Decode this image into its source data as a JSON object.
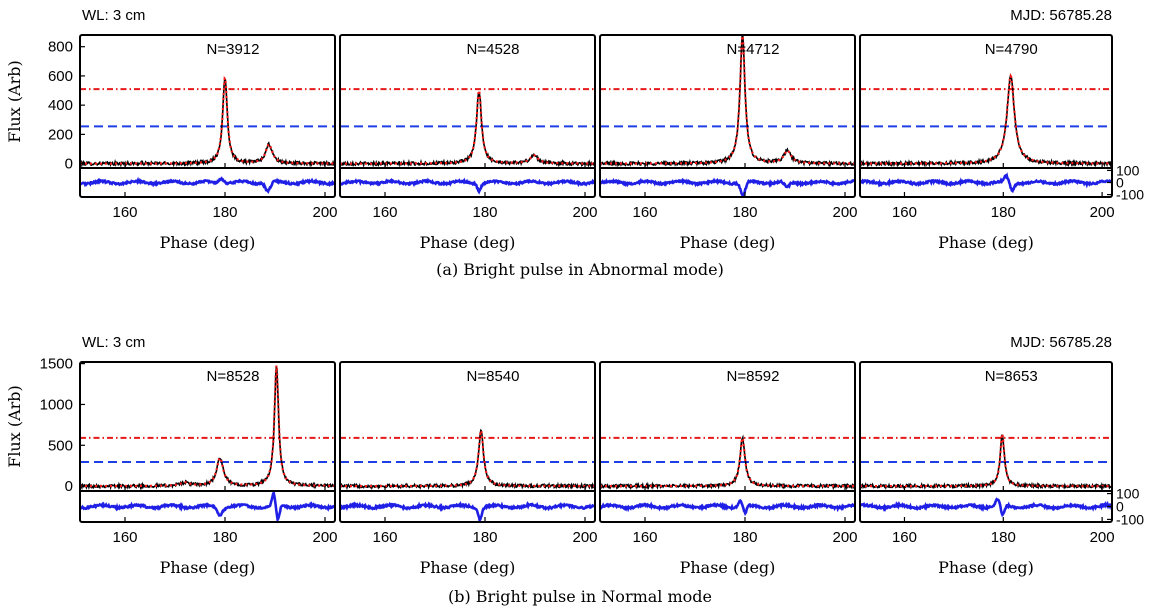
{
  "colors": {
    "profile": "#000000",
    "fit": "#ff1a1a",
    "residual": "#1f1fe6",
    "threshold_high": "#e61919",
    "threshold_low": "#1f3fe6"
  },
  "chart_data": [
    {
      "type": "line",
      "caption": "(a) Bright pulse in Abnormal mode)",
      "top_left_label": "WL: 3 cm",
      "top_right_label": "MJD: 56785.28",
      "ylabel": "Flux (Arb)",
      "xlabel": "Phase (deg)",
      "xlim": [
        151,
        202
      ],
      "xticks": [
        160,
        180,
        200
      ],
      "ylim": [
        -30,
        880
      ],
      "yticks": [
        0,
        200,
        400,
        600,
        800
      ],
      "residual_ylim": [
        -120,
        120
      ],
      "residual_ticks": [
        100,
        0,
        -100
      ],
      "threshold_high": 510,
      "threshold_low": 255,
      "panels": [
        {
          "label": "N=3912",
          "pulses": [
            {
              "center": 180.0,
              "amplitude": 590,
              "width": 0.55
            },
            {
              "center": 188.8,
              "amplitude": 130,
              "width": 0.8
            }
          ],
          "residual_features": [
            {
              "center": 179.3,
              "amplitude": 35,
              "width": 0.5
            },
            {
              "center": 188.6,
              "amplitude": -70,
              "width": 0.5
            }
          ]
        },
        {
          "label": "N=4528",
          "pulses": [
            {
              "center": 178.8,
              "amplitude": 500,
              "width": 0.6
            },
            {
              "center": 189.8,
              "amplitude": 55,
              "width": 1.0
            }
          ],
          "residual_features": [
            {
              "center": 178.8,
              "amplitude": -60,
              "width": 0.35
            }
          ]
        },
        {
          "label": "N=4712",
          "pulses": [
            {
              "center": 179.5,
              "amplitude": 880,
              "width": 0.6
            },
            {
              "center": 188.5,
              "amplitude": 85,
              "width": 0.9
            }
          ],
          "residual_features": [
            {
              "center": 179.6,
              "amplitude": -110,
              "width": 0.45
            },
            {
              "center": 188.4,
              "amplitude": -45,
              "width": 0.5
            }
          ]
        },
        {
          "label": "N=4790",
          "pulses": [
            {
              "center": 181.5,
              "amplitude": 600,
              "width": 0.9
            }
          ],
          "residual_features": [
            {
              "center": 180.6,
              "amplitude": 45,
              "width": 0.45
            },
            {
              "center": 181.8,
              "amplitude": -65,
              "width": 0.4
            }
          ]
        }
      ]
    },
    {
      "type": "line",
      "caption": "(b) Bright pulse in Normal mode",
      "top_left_label": "WL: 3 cm",
      "top_right_label": "MJD: 56785.28",
      "ylabel": "Flux (Arb)",
      "xlabel": "Phase (deg)",
      "xlim": [
        151,
        202
      ],
      "xticks": [
        160,
        180,
        200
      ],
      "ylim": [
        -60,
        1520
      ],
      "yticks": [
        0,
        500,
        1000,
        1500
      ],
      "residual_ylim": [
        -120,
        120
      ],
      "residual_ticks": [
        100,
        0,
        -100
      ],
      "threshold_high": 590,
      "threshold_low": 295,
      "panels": [
        {
          "label": "N=8528",
          "pulses": [
            {
              "center": 172.0,
              "amplitude": 40,
              "width": 1.2
            },
            {
              "center": 179.0,
              "amplitude": 340,
              "width": 0.8
            },
            {
              "center": 190.3,
              "amplitude": 1480,
              "width": 0.5
            }
          ],
          "residual_features": [
            {
              "center": 179.0,
              "amplitude": -60,
              "width": 0.5
            },
            {
              "center": 189.7,
              "amplitude": 90,
              "width": 0.3
            },
            {
              "center": 190.6,
              "amplitude": -110,
              "width": 0.3
            }
          ]
        },
        {
          "label": "N=8540",
          "pulses": [
            {
              "center": 179.2,
              "amplitude": 680,
              "width": 0.6
            }
          ],
          "residual_features": [
            {
              "center": 179.0,
              "amplitude": -90,
              "width": 0.35
            }
          ]
        },
        {
          "label": "N=8592",
          "pulses": [
            {
              "center": 179.5,
              "amplitude": 590,
              "width": 0.6
            }
          ],
          "residual_features": [
            {
              "center": 179.1,
              "amplitude": 50,
              "width": 0.4
            },
            {
              "center": 180.0,
              "amplitude": -60,
              "width": 0.35
            }
          ]
        },
        {
          "label": "N=8653",
          "pulses": [
            {
              "center": 179.8,
              "amplitude": 640,
              "width": 0.5
            }
          ],
          "residual_features": [
            {
              "center": 178.8,
              "amplitude": 55,
              "width": 0.4
            },
            {
              "center": 179.9,
              "amplitude": -75,
              "width": 0.35
            }
          ]
        }
      ]
    }
  ]
}
